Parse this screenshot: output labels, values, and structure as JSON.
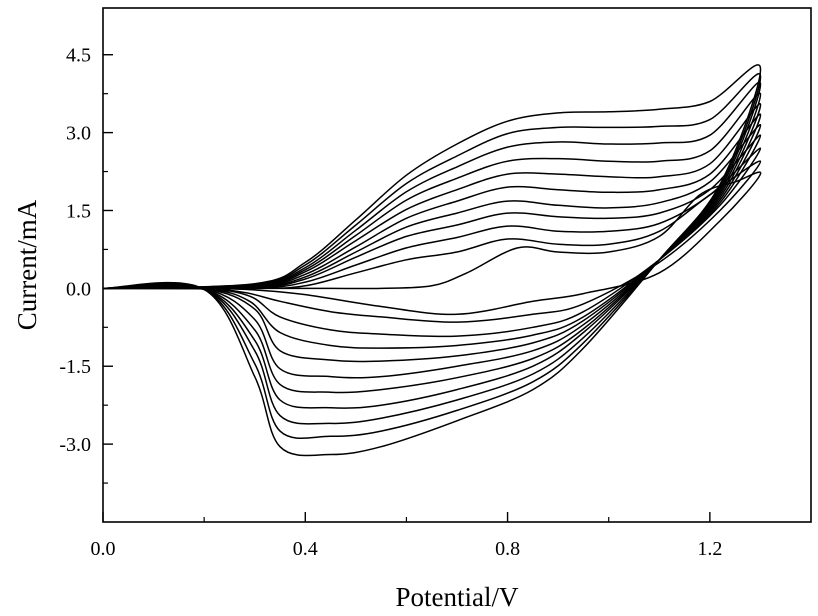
{
  "chart_data": {
    "type": "line",
    "title": "",
    "xlabel": "Potential/V",
    "ylabel": "Current/mA",
    "xlim": [
      0.0,
      1.4
    ],
    "ylim": [
      -4.5,
      5.4
    ],
    "x_ticks": [
      {
        "value": 0.0,
        "label": "0.0"
      },
      {
        "value": 0.4,
        "label": "0.4"
      },
      {
        "value": 0.8,
        "label": "0.8"
      },
      {
        "value": 1.2,
        "label": "1.2"
      }
    ],
    "x_minor_ticks": [
      0.2,
      0.6,
      1.0
    ],
    "y_ticks": [
      {
        "value": 4.5,
        "label": "4.5"
      },
      {
        "value": 3.0,
        "label": "3.0"
      },
      {
        "value": 1.5,
        "label": "1.5"
      },
      {
        "value": 0.0,
        "label": "0.0"
      },
      {
        "value": -1.5,
        "label": "-1.5"
      },
      {
        "value": -3.0,
        "label": "-3.0"
      }
    ],
    "y_minor_ticks": [
      3.75,
      2.25,
      0.75,
      -0.75,
      -2.25,
      -3.75
    ],
    "grid": false,
    "legend": "none",
    "line_color": "#000000",
    "series": [
      {
        "anodic": [
          [
            0.0,
            0.0
          ],
          [
            0.35,
            0.0
          ],
          [
            0.45,
            0.0
          ],
          [
            0.55,
            0.0
          ],
          [
            0.65,
            0.05
          ],
          [
            0.72,
            0.3
          ],
          [
            0.82,
            0.78
          ],
          [
            0.9,
            0.7
          ],
          [
            1.0,
            0.7
          ],
          [
            1.1,
            1.0
          ],
          [
            1.18,
            1.8
          ],
          [
            1.25,
            2.05
          ],
          [
            1.3,
            2.2
          ]
        ],
        "cathodic": [
          [
            1.3,
            2.2
          ],
          [
            1.22,
            1.3
          ],
          [
            1.1,
            0.3
          ],
          [
            0.95,
            -0.1
          ],
          [
            0.85,
            -0.25
          ],
          [
            0.7,
            -0.5
          ],
          [
            0.55,
            -0.35
          ],
          [
            0.4,
            -0.12
          ],
          [
            0.3,
            -0.03
          ],
          [
            0.2,
            0.0
          ],
          [
            0.0,
            0.0
          ]
        ]
      },
      {
        "anodic": [
          [
            0.0,
            0.0
          ],
          [
            0.3,
            0.0
          ],
          [
            0.4,
            0.05
          ],
          [
            0.5,
            0.3
          ],
          [
            0.6,
            0.55
          ],
          [
            0.7,
            0.7
          ],
          [
            0.8,
            0.95
          ],
          [
            0.9,
            0.85
          ],
          [
            1.0,
            0.85
          ],
          [
            1.1,
            1.1
          ],
          [
            1.2,
            1.8
          ],
          [
            1.3,
            2.45
          ]
        ],
        "cathodic": [
          [
            1.3,
            2.45
          ],
          [
            1.22,
            1.5
          ],
          [
            1.1,
            0.5
          ],
          [
            0.95,
            -0.3
          ],
          [
            0.85,
            -0.5
          ],
          [
            0.7,
            -0.65
          ],
          [
            0.55,
            -0.55
          ],
          [
            0.45,
            -0.45
          ],
          [
            0.35,
            -0.25
          ],
          [
            0.28,
            -0.08
          ],
          [
            0.2,
            -0.01
          ],
          [
            0.0,
            0.0
          ]
        ]
      },
      {
        "anodic": [
          [
            0.0,
            0.0
          ],
          [
            0.3,
            0.01
          ],
          [
            0.4,
            0.12
          ],
          [
            0.5,
            0.45
          ],
          [
            0.6,
            0.78
          ],
          [
            0.7,
            0.98
          ],
          [
            0.8,
            1.2
          ],
          [
            0.9,
            1.1
          ],
          [
            1.0,
            1.1
          ],
          [
            1.1,
            1.25
          ],
          [
            1.2,
            1.8
          ],
          [
            1.3,
            2.7
          ]
        ],
        "cathodic": [
          [
            1.3,
            2.7
          ],
          [
            1.22,
            1.6
          ],
          [
            1.1,
            0.55
          ],
          [
            0.95,
            -0.45
          ],
          [
            0.85,
            -0.75
          ],
          [
            0.7,
            -0.92
          ],
          [
            0.55,
            -0.88
          ],
          [
            0.45,
            -0.8
          ],
          [
            0.35,
            -0.55
          ],
          [
            0.29,
            -0.15
          ],
          [
            0.2,
            -0.01
          ],
          [
            0.0,
            0.0
          ]
        ]
      },
      {
        "anodic": [
          [
            0.0,
            0.0
          ],
          [
            0.3,
            0.02
          ],
          [
            0.4,
            0.18
          ],
          [
            0.5,
            0.6
          ],
          [
            0.6,
            1.0
          ],
          [
            0.7,
            1.22
          ],
          [
            0.8,
            1.45
          ],
          [
            0.9,
            1.38
          ],
          [
            1.0,
            1.35
          ],
          [
            1.1,
            1.45
          ],
          [
            1.2,
            1.9
          ],
          [
            1.3,
            2.95
          ]
        ],
        "cathodic": [
          [
            1.3,
            2.95
          ],
          [
            1.22,
            1.65
          ],
          [
            1.1,
            0.55
          ],
          [
            0.95,
            -0.55
          ],
          [
            0.85,
            -0.9
          ],
          [
            0.7,
            -1.1
          ],
          [
            0.55,
            -1.15
          ],
          [
            0.45,
            -1.1
          ],
          [
            0.35,
            -0.85
          ],
          [
            0.29,
            -0.25
          ],
          [
            0.2,
            -0.01
          ],
          [
            0.0,
            0.0
          ]
        ]
      },
      {
        "anodic": [
          [
            0.0,
            0.0
          ],
          [
            0.3,
            0.03
          ],
          [
            0.4,
            0.22
          ],
          [
            0.5,
            0.7
          ],
          [
            0.6,
            1.18
          ],
          [
            0.7,
            1.45
          ],
          [
            0.8,
            1.68
          ],
          [
            0.9,
            1.6
          ],
          [
            1.0,
            1.55
          ],
          [
            1.1,
            1.65
          ],
          [
            1.2,
            2.05
          ],
          [
            1.3,
            3.15
          ]
        ],
        "cathodic": [
          [
            1.3,
            3.15
          ],
          [
            1.22,
            1.7
          ],
          [
            1.1,
            0.55
          ],
          [
            0.95,
            -0.62
          ],
          [
            0.85,
            -1.05
          ],
          [
            0.7,
            -1.3
          ],
          [
            0.55,
            -1.4
          ],
          [
            0.45,
            -1.38
          ],
          [
            0.35,
            -1.2
          ],
          [
            0.3,
            -0.4
          ],
          [
            0.2,
            -0.01
          ],
          [
            0.0,
            0.0
          ]
        ]
      },
      {
        "anodic": [
          [
            0.0,
            0.0
          ],
          [
            0.3,
            0.04
          ],
          [
            0.4,
            0.27
          ],
          [
            0.5,
            0.8
          ],
          [
            0.6,
            1.35
          ],
          [
            0.7,
            1.68
          ],
          [
            0.8,
            1.95
          ],
          [
            0.9,
            1.9
          ],
          [
            1.0,
            1.85
          ],
          [
            1.1,
            1.9
          ],
          [
            1.2,
            2.2
          ],
          [
            1.3,
            3.35
          ]
        ],
        "cathodic": [
          [
            1.3,
            3.35
          ],
          [
            1.22,
            1.75
          ],
          [
            1.1,
            0.55
          ],
          [
            0.95,
            -0.7
          ],
          [
            0.85,
            -1.2
          ],
          [
            0.7,
            -1.5
          ],
          [
            0.55,
            -1.7
          ],
          [
            0.45,
            -1.7
          ],
          [
            0.35,
            -1.55
          ],
          [
            0.3,
            -0.6
          ],
          [
            0.2,
            -0.01
          ],
          [
            0.0,
            0.0
          ]
        ]
      },
      {
        "anodic": [
          [
            0.0,
            0.0
          ],
          [
            0.3,
            0.05
          ],
          [
            0.4,
            0.32
          ],
          [
            0.5,
            0.92
          ],
          [
            0.6,
            1.52
          ],
          [
            0.7,
            1.9
          ],
          [
            0.8,
            2.2
          ],
          [
            0.9,
            2.2
          ],
          [
            1.0,
            2.15
          ],
          [
            1.1,
            2.15
          ],
          [
            1.2,
            2.4
          ],
          [
            1.3,
            3.55
          ]
        ],
        "cathodic": [
          [
            1.3,
            3.55
          ],
          [
            1.22,
            1.8
          ],
          [
            1.1,
            0.55
          ],
          [
            0.95,
            -0.78
          ],
          [
            0.85,
            -1.35
          ],
          [
            0.7,
            -1.72
          ],
          [
            0.55,
            -1.95
          ],
          [
            0.45,
            -2.0
          ],
          [
            0.35,
            -1.85
          ],
          [
            0.3,
            -0.8
          ],
          [
            0.2,
            -0.02
          ],
          [
            0.0,
            0.0
          ]
        ]
      },
      {
        "anodic": [
          [
            0.0,
            0.0
          ],
          [
            0.3,
            0.06
          ],
          [
            0.4,
            0.36
          ],
          [
            0.5,
            1.02
          ],
          [
            0.6,
            1.7
          ],
          [
            0.7,
            2.12
          ],
          [
            0.8,
            2.45
          ],
          [
            0.9,
            2.5
          ],
          [
            1.0,
            2.45
          ],
          [
            1.1,
            2.45
          ],
          [
            1.2,
            2.65
          ],
          [
            1.3,
            3.75
          ]
        ],
        "cathodic": [
          [
            1.3,
            3.75
          ],
          [
            1.22,
            1.85
          ],
          [
            1.1,
            0.55
          ],
          [
            0.95,
            -0.85
          ],
          [
            0.85,
            -1.5
          ],
          [
            0.7,
            -1.95
          ],
          [
            0.55,
            -2.25
          ],
          [
            0.45,
            -2.3
          ],
          [
            0.35,
            -2.15
          ],
          [
            0.3,
            -1.0
          ],
          [
            0.2,
            -0.02
          ],
          [
            0.0,
            0.0
          ]
        ]
      },
      {
        "anodic": [
          [
            0.0,
            0.0
          ],
          [
            0.3,
            0.07
          ],
          [
            0.4,
            0.4
          ],
          [
            0.5,
            1.12
          ],
          [
            0.6,
            1.86
          ],
          [
            0.7,
            2.34
          ],
          [
            0.8,
            2.72
          ],
          [
            0.9,
            2.82
          ],
          [
            1.0,
            2.78
          ],
          [
            1.1,
            2.8
          ],
          [
            1.2,
            2.95
          ],
          [
            1.3,
            3.95
          ]
        ],
        "cathodic": [
          [
            1.3,
            3.95
          ],
          [
            1.22,
            1.9
          ],
          [
            1.1,
            0.55
          ],
          [
            0.95,
            -0.95
          ],
          [
            0.85,
            -1.65
          ],
          [
            0.7,
            -2.15
          ],
          [
            0.55,
            -2.5
          ],
          [
            0.45,
            -2.6
          ],
          [
            0.35,
            -2.45
          ],
          [
            0.3,
            -1.2
          ],
          [
            0.2,
            -0.02
          ],
          [
            0.0,
            0.0
          ]
        ]
      },
      {
        "anodic": [
          [
            0.0,
            0.0
          ],
          [
            0.3,
            0.08
          ],
          [
            0.4,
            0.45
          ],
          [
            0.5,
            1.22
          ],
          [
            0.6,
            2.02
          ],
          [
            0.7,
            2.55
          ],
          [
            0.8,
            2.98
          ],
          [
            0.9,
            3.1
          ],
          [
            1.0,
            3.1
          ],
          [
            1.1,
            3.12
          ],
          [
            1.2,
            3.25
          ],
          [
            1.3,
            4.1
          ]
        ],
        "cathodic": [
          [
            1.3,
            4.1
          ],
          [
            1.22,
            1.95
          ],
          [
            1.1,
            0.55
          ],
          [
            0.95,
            -1.05
          ],
          [
            0.85,
            -1.8
          ],
          [
            0.7,
            -2.35
          ],
          [
            0.55,
            -2.75
          ],
          [
            0.45,
            -2.85
          ],
          [
            0.35,
            -2.75
          ],
          [
            0.3,
            -1.45
          ],
          [
            0.2,
            -0.02
          ],
          [
            0.0,
            0.0
          ]
        ]
      },
      {
        "anodic": [
          [
            0.0,
            0.0
          ],
          [
            0.3,
            0.09
          ],
          [
            0.4,
            0.5
          ],
          [
            0.5,
            1.32
          ],
          [
            0.6,
            2.18
          ],
          [
            0.7,
            2.78
          ],
          [
            0.8,
            3.22
          ],
          [
            0.9,
            3.38
          ],
          [
            1.0,
            3.4
          ],
          [
            1.1,
            3.45
          ],
          [
            1.2,
            3.6
          ],
          [
            1.3,
            4.25
          ]
        ],
        "cathodic": [
          [
            1.3,
            4.25
          ],
          [
            1.22,
            2.0
          ],
          [
            1.1,
            0.55
          ],
          [
            0.95,
            -1.15
          ],
          [
            0.85,
            -1.95
          ],
          [
            0.7,
            -2.55
          ],
          [
            0.55,
            -3.05
          ],
          [
            0.45,
            -3.2
          ],
          [
            0.35,
            -3.05
          ],
          [
            0.3,
            -1.7
          ],
          [
            0.2,
            -0.02
          ],
          [
            0.0,
            0.0
          ]
        ]
      }
    ]
  }
}
